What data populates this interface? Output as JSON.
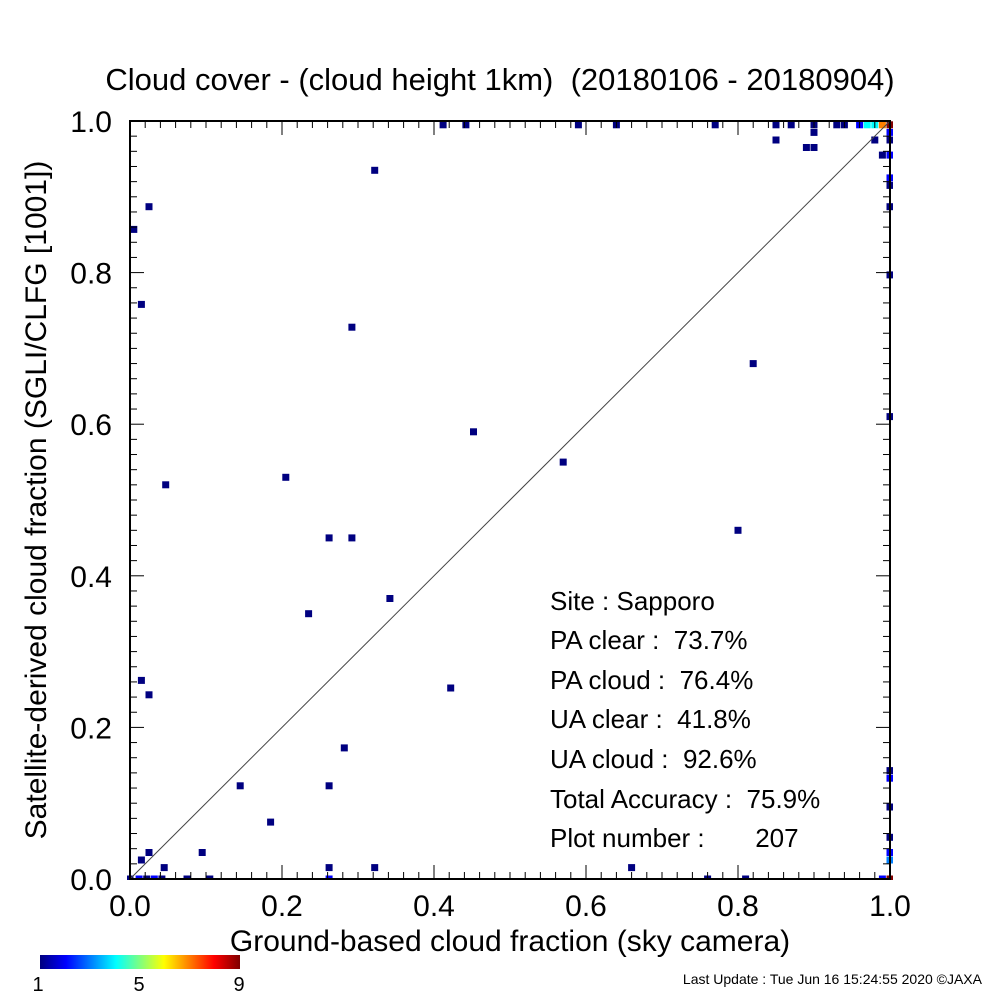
{
  "chart_data": {
    "type": "scatter",
    "title": "Cloud cover - (cloud height 1km)  (20180106 - 20180904)",
    "xlabel": "Ground-based cloud fraction (sky camera)",
    "ylabel": "Satellite-derived cloud fraction (SGLI/CLFG [1001])",
    "xlim": [
      0.0,
      1.0
    ],
    "ylim": [
      0.0,
      1.0
    ],
    "x_ticks": [
      "0.0",
      "0.2",
      "0.4",
      "0.6",
      "0.8",
      "1.0"
    ],
    "y_ticks": [
      "0.0",
      "0.2",
      "0.4",
      "0.6",
      "0.8",
      "1.0"
    ],
    "grid": false,
    "reference_line": "y = x",
    "points": [
      {
        "x": 0.005,
        "y": 0.857,
        "c": 1
      },
      {
        "x": 0.015,
        "y": 0.758,
        "c": 1
      },
      {
        "x": 0.025,
        "y": 0.887,
        "c": 1
      },
      {
        "x": 0.047,
        "y": 0.52,
        "c": 1
      },
      {
        "x": 0.015,
        "y": 0.262,
        "c": 1
      },
      {
        "x": 0.025,
        "y": 0.243,
        "c": 1
      },
      {
        "x": 0.015,
        "y": 0.025,
        "c": 1
      },
      {
        "x": 0.025,
        "y": 0.035,
        "c": 1
      },
      {
        "x": 0.045,
        "y": 0.015,
        "c": 1
      },
      {
        "x": 0.095,
        "y": 0.035,
        "c": 1
      },
      {
        "x": 0.0,
        "y": 0.0,
        "c": 1
      },
      {
        "x": 0.012,
        "y": 0.0,
        "c": 2
      },
      {
        "x": 0.022,
        "y": 0.0,
        "c": 1
      },
      {
        "x": 0.032,
        "y": 0.0,
        "c": 2
      },
      {
        "x": 0.042,
        "y": 0.0,
        "c": 1
      },
      {
        "x": 0.075,
        "y": 0.0,
        "c": 1
      },
      {
        "x": 0.105,
        "y": 0.0,
        "c": 1
      },
      {
        "x": 0.145,
        "y": 0.123,
        "c": 1
      },
      {
        "x": 0.185,
        "y": 0.075,
        "c": 1
      },
      {
        "x": 0.205,
        "y": 0.53,
        "c": 1
      },
      {
        "x": 0.235,
        "y": 0.35,
        "c": 1
      },
      {
        "x": 0.262,
        "y": 0.45,
        "c": 1
      },
      {
        "x": 0.262,
        "y": 0.123,
        "c": 1
      },
      {
        "x": 0.262,
        "y": 0.015,
        "c": 1
      },
      {
        "x": 0.262,
        "y": 0.0,
        "c": 2
      },
      {
        "x": 0.282,
        "y": 0.173,
        "c": 1
      },
      {
        "x": 0.292,
        "y": 0.728,
        "c": 1
      },
      {
        "x": 0.292,
        "y": 0.45,
        "c": 1
      },
      {
        "x": 0.322,
        "y": 0.935,
        "c": 1
      },
      {
        "x": 0.322,
        "y": 0.015,
        "c": 1
      },
      {
        "x": 0.342,
        "y": 0.37,
        "c": 1
      },
      {
        "x": 0.412,
        "y": 0.995,
        "c": 1
      },
      {
        "x": 0.422,
        "y": 0.252,
        "c": 1
      },
      {
        "x": 0.442,
        "y": 0.995,
        "c": 1
      },
      {
        "x": 0.452,
        "y": 0.59,
        "c": 1
      },
      {
        "x": 0.57,
        "y": 0.55,
        "c": 1
      },
      {
        "x": 0.59,
        "y": 0.995,
        "c": 1
      },
      {
        "x": 0.64,
        "y": 0.995,
        "c": 1
      },
      {
        "x": 0.66,
        "y": 0.015,
        "c": 1
      },
      {
        "x": 0.76,
        "y": 0.0,
        "c": 1
      },
      {
        "x": 0.77,
        "y": 0.995,
        "c": 1
      },
      {
        "x": 0.8,
        "y": 0.46,
        "c": 1
      },
      {
        "x": 0.81,
        "y": 0.0,
        "c": 1
      },
      {
        "x": 0.82,
        "y": 0.68,
        "c": 1
      },
      {
        "x": 0.85,
        "y": 0.995,
        "c": 1
      },
      {
        "x": 0.85,
        "y": 0.975,
        "c": 1
      },
      {
        "x": 0.87,
        "y": 0.995,
        "c": 1
      },
      {
        "x": 0.89,
        "y": 0.965,
        "c": 1
      },
      {
        "x": 0.9,
        "y": 0.965,
        "c": 1
      },
      {
        "x": 0.9,
        "y": 0.985,
        "c": 1
      },
      {
        "x": 0.9,
        "y": 0.995,
        "c": 1
      },
      {
        "x": 0.93,
        "y": 0.995,
        "c": 1
      },
      {
        "x": 0.94,
        "y": 0.995,
        "c": 1
      },
      {
        "x": 0.96,
        "y": 0.995,
        "c": 2
      },
      {
        "x": 0.97,
        "y": 0.995,
        "c": 4
      },
      {
        "x": 0.98,
        "y": 0.995,
        "c": 4
      },
      {
        "x": 0.99,
        "y": 0.995,
        "c": 7
      },
      {
        "x": 1.0,
        "y": 0.995,
        "c": 9
      },
      {
        "x": 0.98,
        "y": 0.975,
        "c": 1
      },
      {
        "x": 0.99,
        "y": 0.955,
        "c": 1
      },
      {
        "x": 1.0,
        "y": 0.985,
        "c": 2
      },
      {
        "x": 1.0,
        "y": 0.975,
        "c": 1
      },
      {
        "x": 1.0,
        "y": 0.955,
        "c": 2
      },
      {
        "x": 1.0,
        "y": 0.925,
        "c": 2
      },
      {
        "x": 1.0,
        "y": 0.915,
        "c": 1
      },
      {
        "x": 1.0,
        "y": 0.887,
        "c": 1
      },
      {
        "x": 1.0,
        "y": 0.797,
        "c": 1
      },
      {
        "x": 1.0,
        "y": 0.61,
        "c": 1
      },
      {
        "x": 1.0,
        "y": 0.143,
        "c": 1
      },
      {
        "x": 1.0,
        "y": 0.133,
        "c": 2
      },
      {
        "x": 1.0,
        "y": 0.095,
        "c": 1
      },
      {
        "x": 1.0,
        "y": 0.055,
        "c": 1
      },
      {
        "x": 1.0,
        "y": 0.035,
        "c": 2
      },
      {
        "x": 1.0,
        "y": 0.025,
        "c": 3
      },
      {
        "x": 0.99,
        "y": 0.0,
        "c": 2
      },
      {
        "x": 1.0,
        "y": 0.0,
        "c": 9
      }
    ],
    "colorbar": {
      "min": 1,
      "max": 9,
      "tick_labels": [
        "1",
        "5",
        "9"
      ]
    },
    "annotations": [
      "Site : Sapporo",
      "PA clear :  73.7%",
      "PA cloud :  76.4%",
      "UA clear :  41.8%",
      "UA cloud :  92.6%",
      "Total Accuracy :  75.9%",
      "Plot number :       207"
    ]
  },
  "footer": "Last Update : Tue Jun 16 15:24:55 2020  ©JAXA"
}
